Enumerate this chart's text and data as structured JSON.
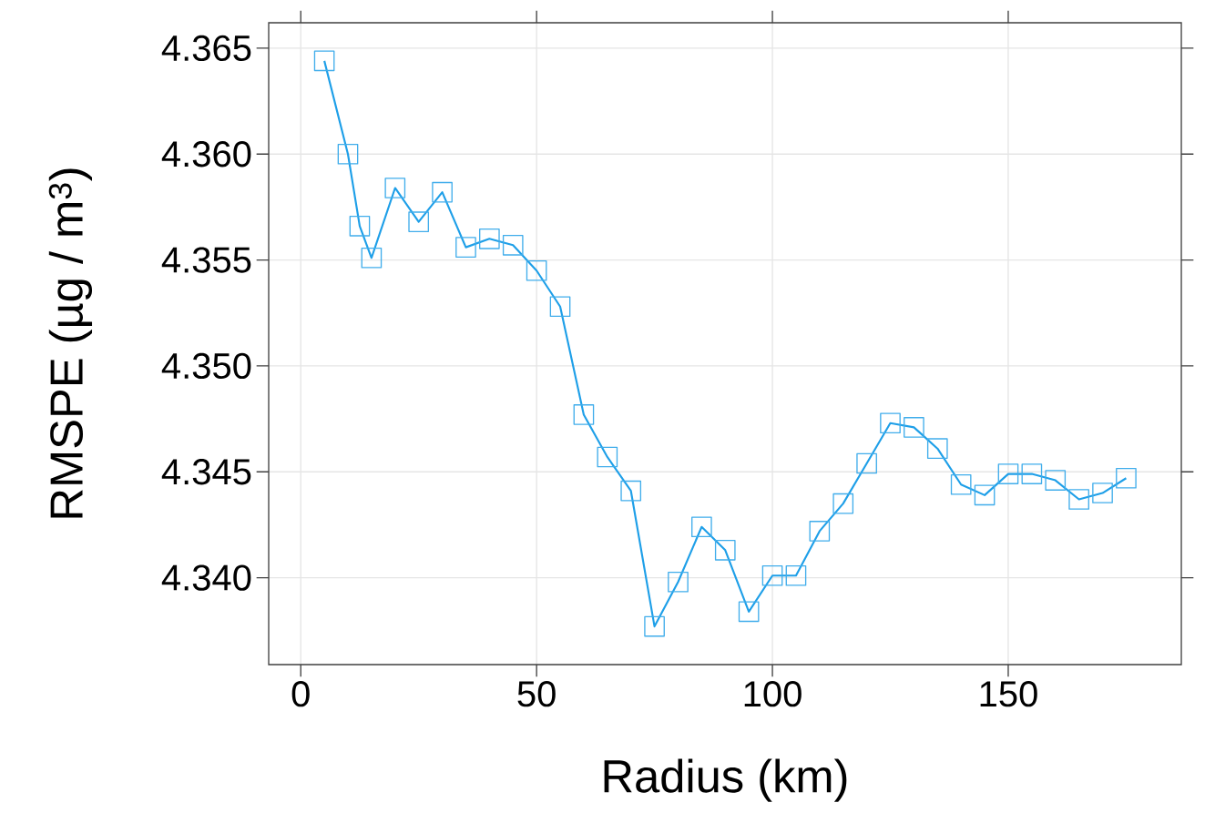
{
  "chart_data": {
    "type": "line",
    "xlabel": "Radius (km)",
    "ylabel": "RMSPE (µg / m$^{3}$)",
    "x": [
      5,
      10,
      12.5,
      15,
      20,
      25,
      30,
      35,
      40,
      45,
      50,
      55,
      60,
      65,
      70,
      75,
      80,
      85,
      90,
      95,
      100,
      105,
      110,
      115,
      120,
      125,
      130,
      135,
      140,
      145,
      150,
      155,
      160,
      165,
      170,
      175
    ],
    "series": [
      {
        "color": "#1e9fe8",
        "values": [
          4.3644,
          4.36,
          4.3566,
          4.3551,
          4.3584,
          4.3568,
          4.3582,
          4.3556,
          4.356,
          4.3557,
          4.3545,
          4.3528,
          4.3477,
          4.3457,
          4.3441,
          4.3377,
          4.3398,
          4.3424,
          4.3413,
          4.3384,
          4.3401,
          4.3401,
          4.3422,
          4.3435,
          4.3454,
          4.3473,
          4.3471,
          4.3461,
          4.3444,
          4.3439,
          4.3449,
          4.3449,
          4.3446,
          4.3437,
          4.344,
          4.3447
        ]
      }
    ],
    "xlim": [
      -6.8,
      186.7
    ],
    "ylim": [
      4.3359,
      4.3662
    ],
    "xticks": [
      0,
      50,
      100,
      150
    ],
    "yticks": [
      {
        "value": 4.34,
        "label": "4.340"
      },
      {
        "value": 4.345,
        "label": "4.345"
      },
      {
        "value": 4.35,
        "label": "4.350"
      },
      {
        "value": 4.355,
        "label": "4.355"
      },
      {
        "value": 4.36,
        "label": "4.360"
      },
      {
        "value": 4.365,
        "label": "4.365"
      }
    ],
    "grid": true,
    "marker": "square",
    "line_style": "solid"
  }
}
